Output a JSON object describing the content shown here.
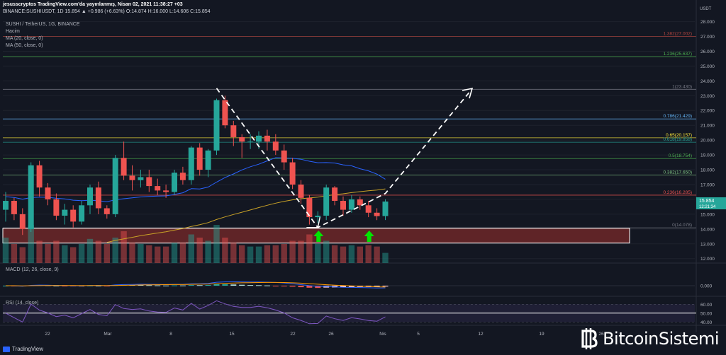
{
  "header": {
    "line1": "jesusscryptos TradingView.com'da yayınlanmış, Nisan 02, 2021 11:38:27 +03",
    "line2": "BINANCE:SUSHIUSDT, 1D 15.854 ▲ +0.986 (+6.63%) O:14.874 H:16.000 L:14.606 C:15.854",
    "symbol": "SUSHI / TetherUS, 1G, BINANCE",
    "hacim": "Hacim",
    "ma20": "MA (20, close, 0)",
    "ma50": "MA (50, close, 0)",
    "macd": "MACD (12, 26, close, 9)",
    "rsi": "RSI (14, close)"
  },
  "price_scale": {
    "currency": "USDT",
    "current_price": "15.854",
    "countdown": "12:21:34"
  },
  "watermark": {
    "brand": "BitcoinSistemi"
  },
  "tv_logo": "TradingView",
  "colors": {
    "bg": "#131722",
    "up": "#26a69a",
    "down": "#ef5350",
    "ma20": "#2962ff",
    "ma50": "#c9a227",
    "zone": "#7a2a2a"
  },
  "chart_data": {
    "type": "candlestick",
    "x_ticks": [
      "22",
      "Mar",
      "8",
      "15",
      "22",
      "26",
      "Nis",
      "5",
      "12",
      "19",
      "26"
    ],
    "y_ticks": [
      "28.000",
      "27.000",
      "26.000",
      "25.000",
      "24.000",
      "23.000",
      "22.000",
      "21.000",
      "20.000",
      "19.000",
      "18.000",
      "17.000",
      "16.000",
      "15.000",
      "14.000",
      "13.000",
      "12.000"
    ],
    "ylim": [
      11.7,
      28.6
    ],
    "candles": [
      [
        15.3,
        16.5,
        14.5,
        15.9
      ],
      [
        15.9,
        16.1,
        14.6,
        15.0
      ],
      [
        15.0,
        15.4,
        13.6,
        14.0
      ],
      [
        14.0,
        18.5,
        13.8,
        18.3
      ],
      [
        18.3,
        18.6,
        16.2,
        16.8
      ],
      [
        16.8,
        17.1,
        15.6,
        16.0
      ],
      [
        16.0,
        16.4,
        14.6,
        14.9
      ],
      [
        14.9,
        15.7,
        14.3,
        15.3
      ],
      [
        15.3,
        15.6,
        14.1,
        14.5
      ],
      [
        14.5,
        15.9,
        14.3,
        15.6
      ],
      [
        15.6,
        17.0,
        15.0,
        16.8
      ],
      [
        16.8,
        17.2,
        15.0,
        15.4
      ],
      [
        15.4,
        15.6,
        14.7,
        15.0
      ],
      [
        15.0,
        19.0,
        14.8,
        18.8
      ],
      [
        18.8,
        19.9,
        17.3,
        17.6
      ],
      [
        17.6,
        18.3,
        16.6,
        17.3
      ],
      [
        17.3,
        18.0,
        16.8,
        17.5
      ],
      [
        17.5,
        18.0,
        16.5,
        16.9
      ],
      [
        16.9,
        17.4,
        16.3,
        16.6
      ],
      [
        16.6,
        17.0,
        16.1,
        16.5
      ],
      [
        16.5,
        18.0,
        16.3,
        17.8
      ],
      [
        17.8,
        18.2,
        17.0,
        17.3
      ],
      [
        17.3,
        19.6,
        17.0,
        19.5
      ],
      [
        19.5,
        19.8,
        17.6,
        18.0
      ],
      [
        18.0,
        19.4,
        17.5,
        19.3
      ],
      [
        19.3,
        22.8,
        19.0,
        22.7
      ],
      [
        22.7,
        23.0,
        20.8,
        21.0
      ],
      [
        21.0,
        21.3,
        19.6,
        20.2
      ],
      [
        20.2,
        20.4,
        18.8,
        19.9
      ],
      [
        19.9,
        20.4,
        19.4,
        19.9
      ],
      [
        19.9,
        20.6,
        19.4,
        20.3
      ],
      [
        20.3,
        20.7,
        19.3,
        19.9
      ],
      [
        19.9,
        20.4,
        19.0,
        19.3
      ],
      [
        19.3,
        19.7,
        18.0,
        18.5
      ],
      [
        18.5,
        18.8,
        16.7,
        17.0
      ],
      [
        17.0,
        17.3,
        15.7,
        16.1
      ],
      [
        16.1,
        16.3,
        14.3,
        14.8
      ],
      [
        14.8,
        15.2,
        14.4,
        14.9
      ],
      [
        14.9,
        17.0,
        14.6,
        16.8
      ],
      [
        16.8,
        16.9,
        15.6,
        15.9
      ],
      [
        15.9,
        16.2,
        14.9,
        15.3
      ],
      [
        15.3,
        16.3,
        15.1,
        16.0
      ],
      [
        16.0,
        16.2,
        15.3,
        15.6
      ],
      [
        15.6,
        15.9,
        14.8,
        15.1
      ],
      [
        15.1,
        15.4,
        14.6,
        14.87
      ],
      [
        14.874,
        16.0,
        14.606,
        15.854
      ]
    ],
    "volume": [
      4,
      3,
      2.5,
      6,
      3.5,
      3,
      3.5,
      2.8,
      2.5,
      3,
      3.8,
      3.5,
      3,
      4,
      5,
      3.2,
      3,
      2.8,
      2.6,
      2.6,
      3.2,
      3.2,
      4.5,
      4,
      3.5,
      6,
      4,
      3.2,
      2.8,
      2.6,
      2.6,
      2.8,
      2.8,
      3,
      3.5,
      3.5,
      4.5,
      3,
      3.5,
      2.8,
      2.6,
      2.8,
      2.6,
      2.8,
      2.6,
      1.6
    ],
    "ma20_start": 16.2,
    "fib_levels": [
      {
        "label": "1.382(27.002)",
        "value": 27.002,
        "color": "#b2443e"
      },
      {
        "label": "1.236(25.637)",
        "value": 25.637,
        "color": "#4caf50"
      },
      {
        "label": "1(23.430)",
        "value": 23.43,
        "color": "#787b86"
      },
      {
        "label": "0.786(21.429)",
        "value": 21.429,
        "color": "#64b5f6"
      },
      {
        "label": "0.65(20.157)",
        "value": 20.157,
        "color": "#ffeb3b"
      },
      {
        "label": "0.618(19.858)",
        "value": 19.858,
        "color": "#26a69a"
      },
      {
        "label": "0.5(18.754)",
        "value": 18.754,
        "color": "#4caf50"
      },
      {
        "label": "0.382(17.650)",
        "value": 17.65,
        "color": "#81c784"
      },
      {
        "label": "0.236(16.285)",
        "value": 16.285,
        "color": "#ef5350"
      },
      {
        "label": "0(14.078)",
        "value": 14.078,
        "color": "#787b86"
      }
    ],
    "support_zone": [
      13.05,
      14.05
    ],
    "macd_ticks": [
      "0.000"
    ],
    "rsi_ticks": [
      "60.00",
      "50.00",
      "40.00"
    ]
  }
}
